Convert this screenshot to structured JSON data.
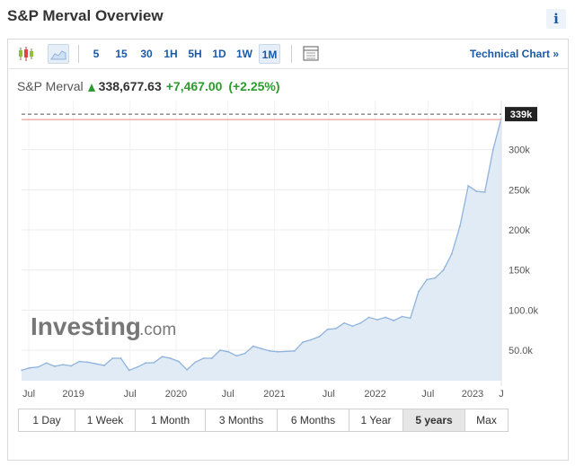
{
  "page": {
    "title": "S&P Merval Overview",
    "info_label": "i"
  },
  "toolbar": {
    "intervals": [
      {
        "label": "5",
        "active": false
      },
      {
        "label": "15",
        "active": false
      },
      {
        "label": "30",
        "active": false
      },
      {
        "label": "1H",
        "active": false
      },
      {
        "label": "5H",
        "active": false
      },
      {
        "label": "1D",
        "active": false
      },
      {
        "label": "1W",
        "active": false
      },
      {
        "label": "1M",
        "active": true
      }
    ],
    "technical_chart_label": "Technical Chart »"
  },
  "quote": {
    "name": "S&P Merval",
    "price": "338,677.63",
    "change": "+7,467.00",
    "change_pct": "(+2.25%)"
  },
  "watermark": {
    "brand": "Investing",
    "suffix": ".com"
  },
  "colors": {
    "accent": "#1a5aa8",
    "up": "#2e9a2e",
    "line": "#8fb3dc",
    "fill": "#e1ebf6",
    "current_line": "#f08a80"
  },
  "chart_data": {
    "type": "area",
    "x_ticks": [
      "Jul",
      "2019",
      "Jul",
      "2020",
      "Jul",
      "2021",
      "Jul",
      "2022",
      "Jul",
      "2023",
      "J"
    ],
    "y_ticks": [
      "50.0k",
      "100.0k",
      "150k",
      "200k",
      "250k",
      "300k"
    ],
    "y_tick_values": [
      50000,
      100000,
      150000,
      200000,
      250000,
      300000
    ],
    "ylim": [
      12000,
      350000
    ],
    "current_label": "339k",
    "current_value": 338677.63,
    "values": [
      25000,
      28000,
      29000,
      34000,
      30000,
      32000,
      30500,
      36000,
      35000,
      33000,
      31000,
      40000,
      40000,
      25000,
      29000,
      34000,
      34500,
      42000,
      40000,
      36000,
      25500,
      35000,
      40000,
      40000,
      50000,
      48000,
      43000,
      46000,
      55000,
      52000,
      49000,
      48000,
      48500,
      49000,
      60000,
      63000,
      67000,
      76000,
      77000,
      84000,
      80000,
      84000,
      91000,
      88000,
      91000,
      87000,
      92000,
      90000,
      123000,
      138000,
      140000,
      150000,
      170000,
      205000,
      255000,
      248000,
      247000,
      300000,
      339000
    ]
  },
  "ranges": [
    {
      "label": "1 Day",
      "active": false
    },
    {
      "label": "1 Week",
      "active": false
    },
    {
      "label": "1 Month",
      "active": false
    },
    {
      "label": "3 Months",
      "active": false
    },
    {
      "label": "6 Months",
      "active": false
    },
    {
      "label": "1 Year",
      "active": false
    },
    {
      "label": "5 years",
      "active": true
    },
    {
      "label": "Max",
      "active": false
    }
  ]
}
